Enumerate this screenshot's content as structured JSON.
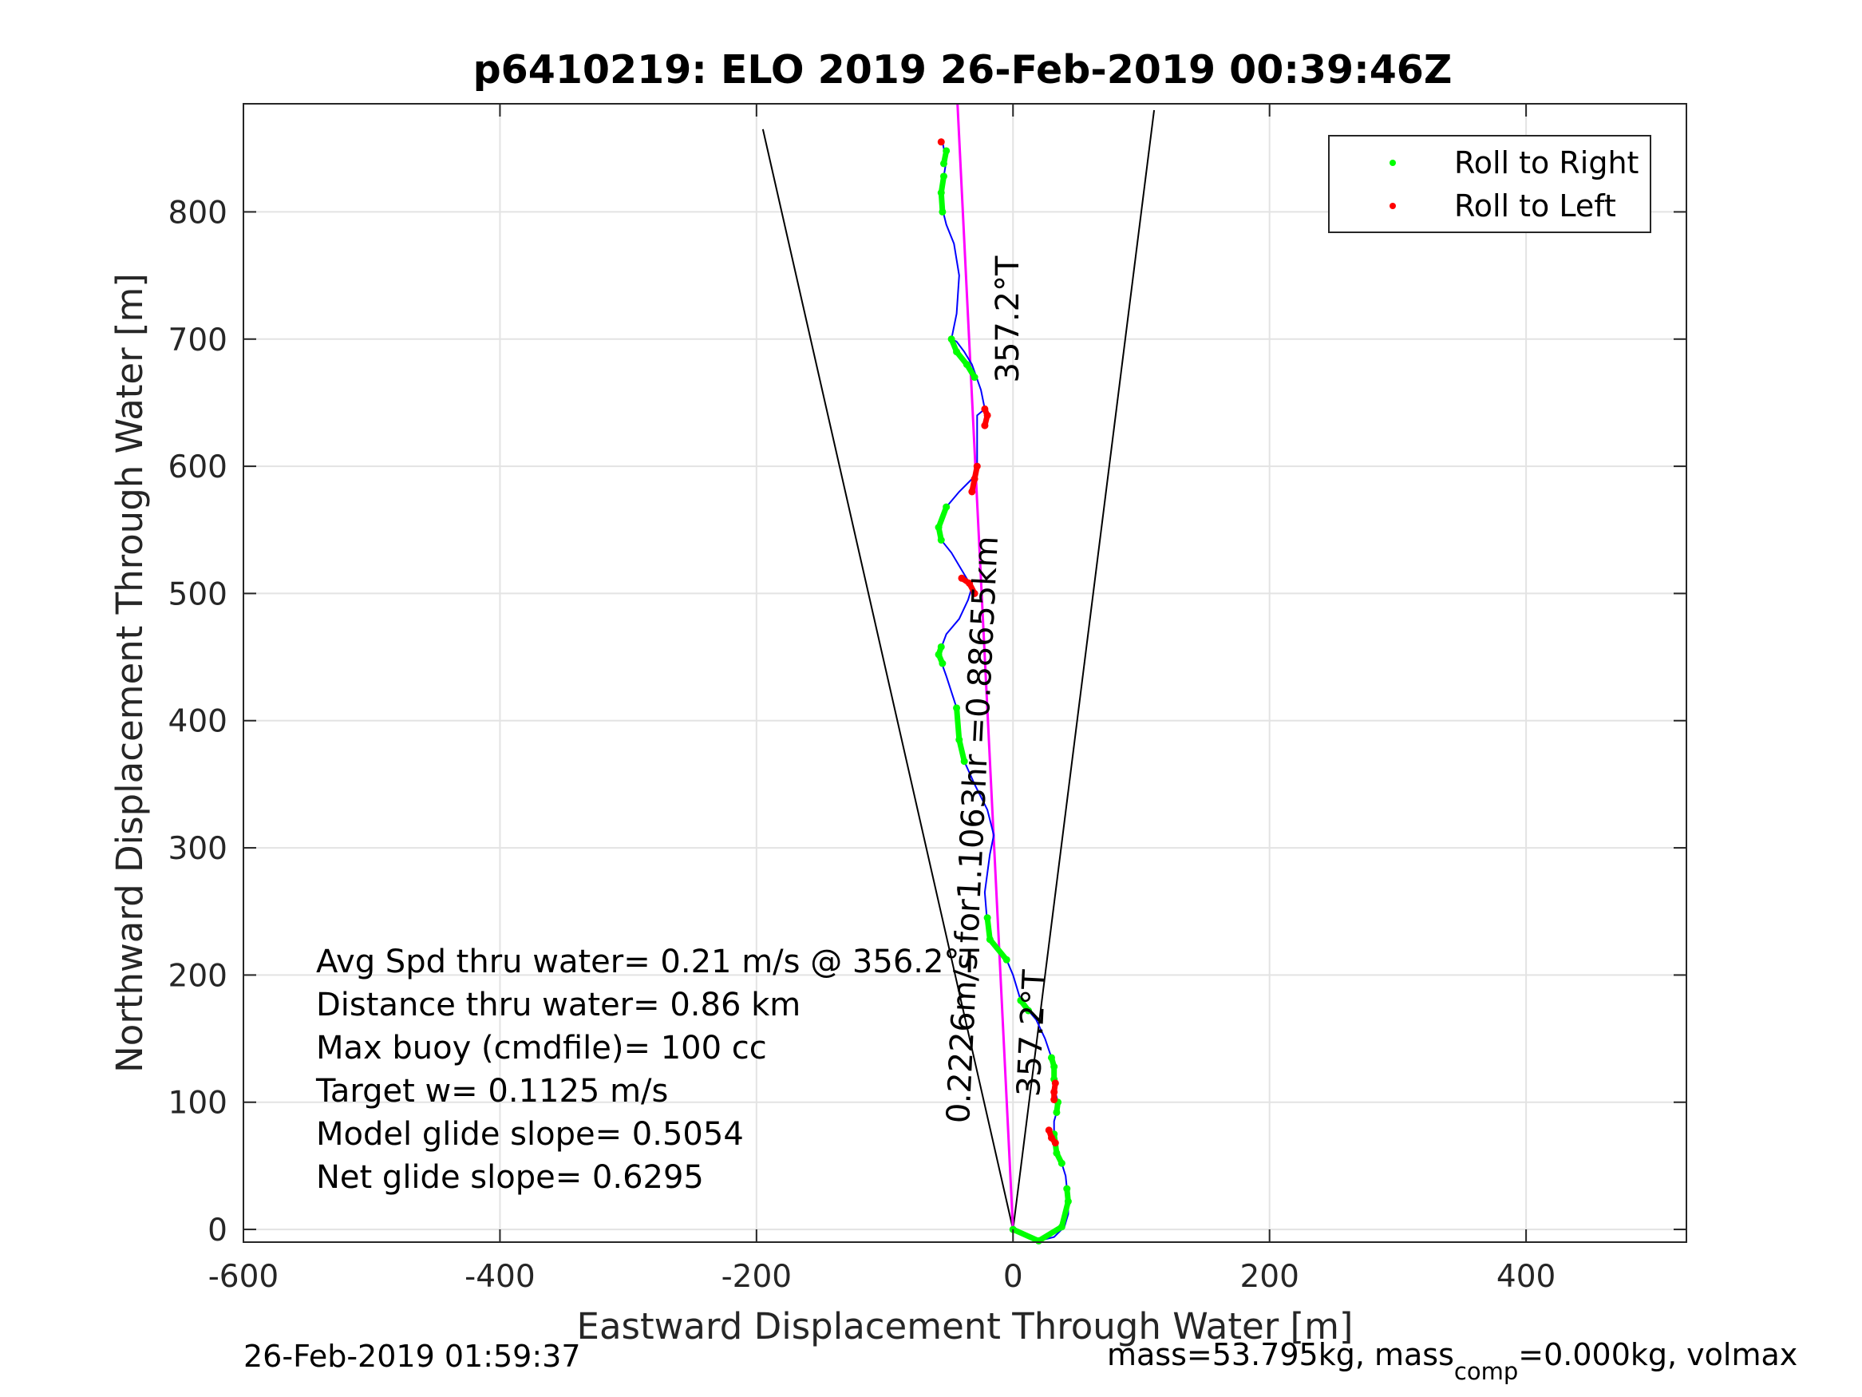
{
  "chart_data": {
    "type": "line",
    "title": "p6410219: ELO 2019 26-Feb-2019 00:39:46Z",
    "xlabel": "Eastward Displacement Through Water [m]",
    "ylabel": "Northward Displacement Through Water [m]",
    "xlim": [
      -600,
      525
    ],
    "ylim": [
      -10,
      885
    ],
    "xticks": [
      -600,
      -400,
      -200,
      0,
      200,
      400
    ],
    "yticks": [
      0,
      100,
      200,
      300,
      400,
      500,
      600,
      700,
      800
    ],
    "xtick_labels": [
      "-600",
      "-400",
      "-200",
      "0",
      "200",
      "400"
    ],
    "ytick_labels": [
      "0",
      "100",
      "200",
      "300",
      "400",
      "500",
      "600",
      "700",
      "800"
    ],
    "grid": true,
    "legend": {
      "position": "top-right",
      "entries": [
        {
          "label": "Roll to Right",
          "color": "#00ff00"
        },
        {
          "label": "Roll to Left",
          "color": "#ff0000"
        }
      ]
    },
    "track": {
      "name": "track",
      "color": "#0000ff",
      "points": [
        [
          0,
          0
        ],
        [
          8,
          -5
        ],
        [
          20,
          -9
        ],
        [
          32,
          -6
        ],
        [
          40,
          2
        ],
        [
          43,
          12
        ],
        [
          43,
          22
        ],
        [
          42,
          32
        ],
        [
          41,
          42
        ],
        [
          38,
          52
        ],
        [
          35,
          60
        ],
        [
          33,
          68
        ],
        [
          32,
          75
        ],
        [
          32,
          85
        ],
        [
          34,
          92
        ],
        [
          35,
          100
        ],
        [
          33,
          108
        ],
        [
          32,
          118
        ],
        [
          32,
          128
        ],
        [
          30,
          135
        ],
        [
          25,
          150
        ],
        [
          18,
          165
        ],
        [
          12,
          172
        ],
        [
          6,
          180
        ],
        [
          0,
          200
        ],
        [
          -5,
          212
        ],
        [
          -12,
          220
        ],
        [
          -18,
          228
        ],
        [
          -20,
          240
        ],
        [
          -22,
          265
        ],
        [
          -18,
          295
        ],
        [
          -15,
          310
        ],
        [
          -20,
          330
        ],
        [
          -30,
          350
        ],
        [
          -38,
          368
        ],
        [
          -42,
          385
        ],
        [
          -44,
          410
        ],
        [
          -52,
          435
        ],
        [
          -58,
          452
        ],
        [
          -52,
          468
        ],
        [
          -42,
          480
        ],
        [
          -35,
          495
        ],
        [
          -32,
          505
        ],
        [
          -38,
          515
        ],
        [
          -48,
          532
        ],
        [
          -56,
          542
        ],
        [
          -58,
          552
        ],
        [
          -52,
          568
        ],
        [
          -42,
          580
        ],
        [
          -32,
          590
        ],
        [
          -28,
          600
        ],
        [
          -28,
          620
        ],
        [
          -28,
          640
        ],
        [
          -22,
          645
        ],
        [
          -20,
          635
        ],
        [
          -25,
          660
        ],
        [
          -32,
          680
        ],
        [
          -38,
          690
        ],
        [
          -44,
          698
        ],
        [
          -48,
          700
        ],
        [
          -44,
          720
        ],
        [
          -42,
          750
        ],
        [
          -46,
          775
        ],
        [
          -52,
          790
        ],
        [
          -55,
          802
        ],
        [
          -56,
          815
        ],
        [
          -54,
          828
        ],
        [
          -52,
          840
        ],
        [
          -55,
          855
        ]
      ]
    },
    "roll_right": [
      [
        [
          0,
          0
        ],
        [
          20,
          -9
        ],
        [
          38,
          2
        ],
        [
          43,
          22
        ],
        [
          42,
          32
        ]
      ],
      [
        [
          38,
          52
        ],
        [
          34,
          60
        ],
        [
          32,
          75
        ]
      ],
      [
        [
          34,
          92
        ],
        [
          35,
          100
        ]
      ],
      [
        [
          32,
          118
        ],
        [
          32,
          128
        ],
        [
          30,
          135
        ]
      ],
      [
        [
          12,
          172
        ],
        [
          6,
          180
        ]
      ],
      [
        [
          -5,
          212
        ],
        [
          -18,
          228
        ],
        [
          -20,
          245
        ]
      ],
      [
        [
          -38,
          368
        ],
        [
          -42,
          385
        ],
        [
          -44,
          410
        ]
      ],
      [
        [
          -55,
          445
        ],
        [
          -58,
          452
        ],
        [
          -56,
          458
        ]
      ],
      [
        [
          -56,
          542
        ],
        [
          -58,
          552
        ],
        [
          -52,
          568
        ]
      ],
      [
        [
          -48,
          700
        ],
        [
          -44,
          690
        ],
        [
          -36,
          680
        ],
        [
          -30,
          670
        ]
      ],
      [
        [
          -55,
          800
        ],
        [
          -56,
          815
        ],
        [
          -54,
          828
        ]
      ],
      [
        [
          -54,
          838
        ],
        [
          -52,
          848
        ]
      ]
    ],
    "roll_left": [
      [
        [
          33,
          68
        ],
        [
          30,
          72
        ],
        [
          28,
          78
        ]
      ],
      [
        [
          32,
          102
        ],
        [
          32,
          108
        ],
        [
          33,
          115
        ]
      ],
      [
        [
          -30,
          500
        ],
        [
          -34,
          508
        ],
        [
          -40,
          512
        ]
      ],
      [
        [
          -32,
          580
        ],
        [
          -30,
          590
        ],
        [
          -28,
          600
        ]
      ],
      [
        [
          -22,
          632
        ],
        [
          -20,
          640
        ],
        [
          -22,
          645
        ]
      ],
      [
        [
          -56,
          855
        ]
      ]
    ],
    "heading_line": {
      "color": "#ff00ff",
      "heading_deg": 357.2,
      "label": "357.2°T"
    },
    "cone": {
      "color": "#000000",
      "left_end": [
        -195,
        865
      ],
      "right_end": [
        110,
        880
      ]
    },
    "vector_label": "0.2226m/s for1.1063hr =0.88655km",
    "end_heading_label": "357.2°T",
    "annotations": [
      "Avg Spd thru water=  0.21 m/s @ 356.2°T",
      "Distance thru water=  0.86 km",
      "Max buoy (cmdfile)= 100 cc",
      "Target w= 0.1125 m/s",
      "Model glide slope= 0.5054",
      "Net glide slope= 0.6295"
    ],
    "footer_left": "26-Feb-2019 01:59:37",
    "footer_right": {
      "a": "mass=53.795kg, mass",
      "sub": "comp",
      "b": "=0.000kg, volmax"
    }
  }
}
